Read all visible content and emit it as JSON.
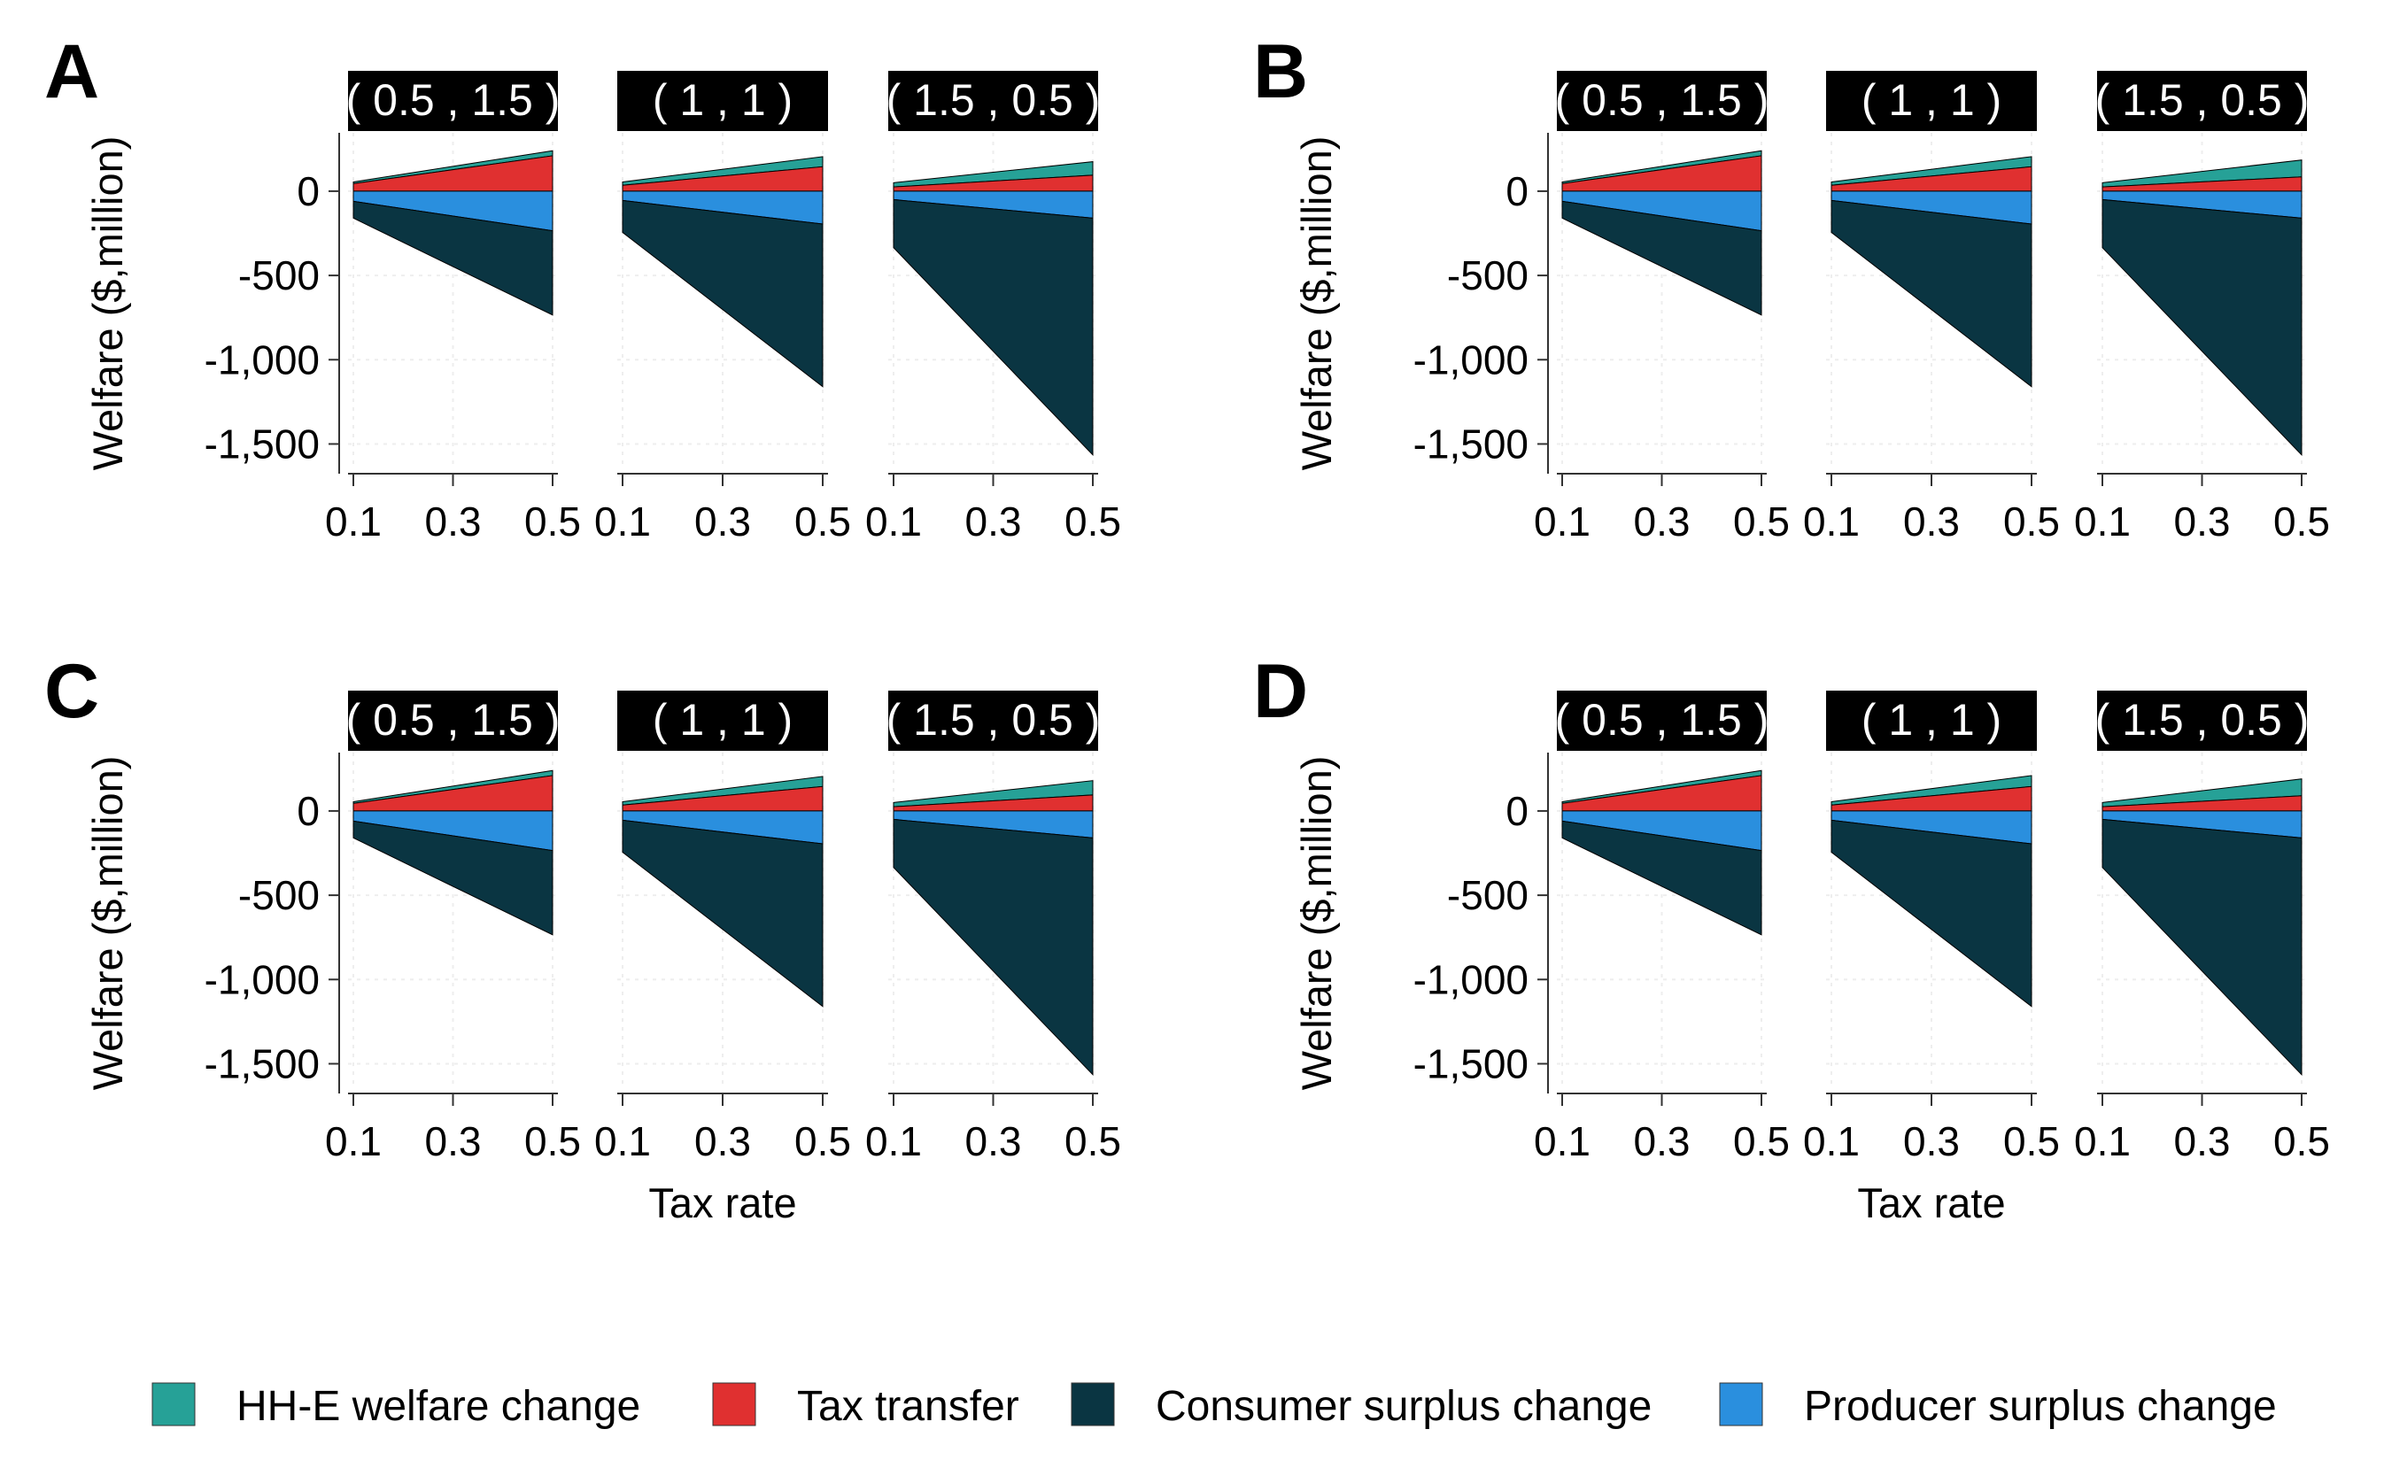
{
  "legend": [
    {
      "key": "hhe",
      "label": "HH-E welfare change",
      "color": "#26a197"
    },
    {
      "key": "tax",
      "label": "Tax transfer",
      "color": "#e03030"
    },
    {
      "key": "cs",
      "label": "Consumer surplus change",
      "color": "#0a3542"
    },
    {
      "key": "ps",
      "label": "Producer surplus change",
      "color": "#2a8fde"
    }
  ],
  "chart_data": [
    {
      "panel": "A",
      "type": "area",
      "xlabel": "",
      "ylabel": "Welfare ($,million)",
      "x_ticks": [
        "0.1",
        "0.3",
        "0.5"
      ],
      "y_ticks": [
        "0",
        "-500",
        "-1,000",
        "-1,500"
      ],
      "xlim": [
        0.1,
        0.5
      ],
      "ylim": [
        -1650,
        320
      ],
      "facets": [
        {
          "label": "( 0.5 , 1.5 )",
          "x": [
            0.1,
            0.5
          ],
          "ps": [
            -60,
            -235
          ],
          "cs_bottom": [
            -160,
            -735
          ],
          "tax_top": [
            45,
            210
          ],
          "hhe_top": [
            55,
            240
          ]
        },
        {
          "label": "( 1 , 1 )",
          "x": [
            0.1,
            0.5
          ],
          "ps": [
            -55,
            -195
          ],
          "cs_bottom": [
            -245,
            -1160
          ],
          "tax_top": [
            35,
            145
          ],
          "hhe_top": [
            55,
            205
          ]
        },
        {
          "label": "( 1.5 , 0.5 )",
          "x": [
            0.1,
            0.5
          ],
          "ps": [
            -50,
            -160
          ],
          "cs_bottom": [
            -335,
            -1565
          ],
          "tax_top": [
            25,
            95
          ],
          "hhe_top": [
            50,
            175
          ]
        }
      ]
    },
    {
      "panel": "B",
      "type": "area",
      "xlabel": "",
      "ylabel": "Welfare ($,million)",
      "x_ticks": [
        "0.1",
        "0.3",
        "0.5"
      ],
      "y_ticks": [
        "0",
        "-500",
        "-1,000",
        "-1,500"
      ],
      "xlim": [
        0.1,
        0.5
      ],
      "ylim": [
        -1650,
        320
      ],
      "facets": [
        {
          "label": "( 0.5 , 1.5 )",
          "x": [
            0.1,
            0.5
          ],
          "ps": [
            -60,
            -235
          ],
          "cs_bottom": [
            -160,
            -735
          ],
          "tax_top": [
            45,
            210
          ],
          "hhe_top": [
            55,
            240
          ]
        },
        {
          "label": "( 1 , 1 )",
          "x": [
            0.1,
            0.5
          ],
          "ps": [
            -55,
            -195
          ],
          "cs_bottom": [
            -245,
            -1160
          ],
          "tax_top": [
            35,
            145
          ],
          "hhe_top": [
            55,
            205
          ]
        },
        {
          "label": "( 1.5 , 0.5 )",
          "x": [
            0.1,
            0.5
          ],
          "ps": [
            -50,
            -160
          ],
          "cs_bottom": [
            -335,
            -1565
          ],
          "tax_top": [
            25,
            85
          ],
          "hhe_top": [
            50,
            185
          ]
        }
      ]
    },
    {
      "panel": "C",
      "type": "area",
      "xlabel": "Tax rate",
      "ylabel": "Welfare ($,million)",
      "x_ticks": [
        "0.1",
        "0.3",
        "0.5"
      ],
      "y_ticks": [
        "0",
        "-500",
        "-1,000",
        "-1,500"
      ],
      "xlim": [
        0.1,
        0.5
      ],
      "ylim": [
        -1650,
        320
      ],
      "facets": [
        {
          "label": "( 0.5 , 1.5 )",
          "x": [
            0.1,
            0.5
          ],
          "ps": [
            -60,
            -235
          ],
          "cs_bottom": [
            -160,
            -735
          ],
          "tax_top": [
            45,
            210
          ],
          "hhe_top": [
            55,
            240
          ]
        },
        {
          "label": "( 1 , 1 )",
          "x": [
            0.1,
            0.5
          ],
          "ps": [
            -55,
            -195
          ],
          "cs_bottom": [
            -245,
            -1160
          ],
          "tax_top": [
            35,
            145
          ],
          "hhe_top": [
            55,
            205
          ]
        },
        {
          "label": "( 1.5 , 0.5 )",
          "x": [
            0.1,
            0.5
          ],
          "ps": [
            -50,
            -160
          ],
          "cs_bottom": [
            -335,
            -1565
          ],
          "tax_top": [
            25,
            95
          ],
          "hhe_top": [
            50,
            180
          ]
        }
      ]
    },
    {
      "panel": "D",
      "type": "area",
      "xlabel": "Tax rate",
      "ylabel": "Welfare ($,million)",
      "x_ticks": [
        "0.1",
        "0.3",
        "0.5"
      ],
      "y_ticks": [
        "0",
        "-500",
        "-1,000",
        "-1,500"
      ],
      "xlim": [
        0.1,
        0.5
      ],
      "ylim": [
        -1650,
        320
      ],
      "facets": [
        {
          "label": "( 0.5 , 1.5 )",
          "x": [
            0.1,
            0.5
          ],
          "ps": [
            -60,
            -235
          ],
          "cs_bottom": [
            -160,
            -735
          ],
          "tax_top": [
            45,
            210
          ],
          "hhe_top": [
            55,
            240
          ]
        },
        {
          "label": "( 1 , 1 )",
          "x": [
            0.1,
            0.5
          ],
          "ps": [
            -55,
            -195
          ],
          "cs_bottom": [
            -245,
            -1160
          ],
          "tax_top": [
            35,
            145
          ],
          "hhe_top": [
            55,
            210
          ]
        },
        {
          "label": "( 1.5 , 0.5 )",
          "x": [
            0.1,
            0.5
          ],
          "ps": [
            -50,
            -160
          ],
          "cs_bottom": [
            -335,
            -1565
          ],
          "tax_top": [
            25,
            90
          ],
          "hhe_top": [
            50,
            190
          ]
        }
      ]
    }
  ]
}
